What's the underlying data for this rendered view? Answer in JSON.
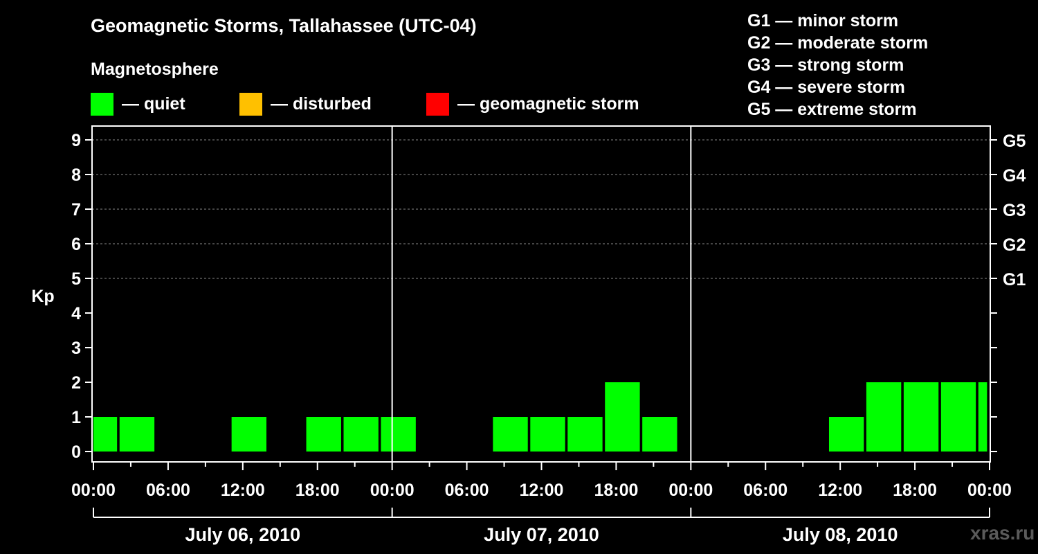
{
  "title": "Geomagnetic Storms, Tallahassee (UTC-04)",
  "legend": {
    "heading": "Magnetosphere",
    "items": [
      {
        "label": "— quiet",
        "color": "#00ff00"
      },
      {
        "label": "— disturbed",
        "color": "#ffc000"
      },
      {
        "label": "— geomagnetic storm",
        "color": "#ff0000"
      }
    ]
  },
  "storm_scale": [
    "G1 — minor storm",
    "G2 — moderate storm",
    "G3 — strong storm",
    "G4 — severe storm",
    "G5 — extreme storm"
  ],
  "watermark": "xras.ru",
  "chart_data": {
    "type": "bar",
    "ylabel": "Kp",
    "ylim": [
      0,
      9
    ],
    "yticks": [
      "0",
      "1",
      "2",
      "3",
      "4",
      "5",
      "6",
      "7",
      "8",
      "9"
    ],
    "right_ticks": [
      {
        "kp": 5,
        "label": "G1"
      },
      {
        "kp": 6,
        "label": "G2"
      },
      {
        "kp": 7,
        "label": "G3"
      },
      {
        "kp": 8,
        "label": "G4"
      },
      {
        "kp": 9,
        "label": "G5"
      }
    ],
    "x_tick_labels": [
      "00:00",
      "06:00",
      "12:00",
      "18:00",
      "00:00",
      "06:00",
      "12:00",
      "18:00",
      "00:00",
      "06:00",
      "12:00",
      "18:00",
      "00:00"
    ],
    "days": [
      "July 06, 2010",
      "July 07, 2010",
      "July 08, 2010"
    ],
    "xlim_hours": [
      0,
      72
    ],
    "grid": "dashed horizontal at Kp 5-9",
    "bars": [
      {
        "start_hour": 0,
        "end_hour": 1.9,
        "kp": 1
      },
      {
        "start_hour": 2.1,
        "end_hour": 4.9,
        "kp": 1
      },
      {
        "start_hour": 11.1,
        "end_hour": 13.9,
        "kp": 1
      },
      {
        "start_hour": 17.1,
        "end_hour": 19.9,
        "kp": 1
      },
      {
        "start_hour": 20.1,
        "end_hour": 22.9,
        "kp": 1
      },
      {
        "start_hour": 23.1,
        "end_hour": 25.9,
        "kp": 1
      },
      {
        "start_hour": 32.1,
        "end_hour": 34.9,
        "kp": 1
      },
      {
        "start_hour": 35.1,
        "end_hour": 37.9,
        "kp": 1
      },
      {
        "start_hour": 38.1,
        "end_hour": 40.9,
        "kp": 1
      },
      {
        "start_hour": 41.1,
        "end_hour": 43.9,
        "kp": 2
      },
      {
        "start_hour": 44.1,
        "end_hour": 46.9,
        "kp": 1
      },
      {
        "start_hour": 59.1,
        "end_hour": 61.9,
        "kp": 1
      },
      {
        "start_hour": 62.1,
        "end_hour": 64.9,
        "kp": 2
      },
      {
        "start_hour": 65.1,
        "end_hour": 67.9,
        "kp": 2
      },
      {
        "start_hour": 68.1,
        "end_hour": 70.9,
        "kp": 2
      },
      {
        "start_hour": 71.1,
        "end_hour": 71.8,
        "kp": 2
      }
    ]
  }
}
